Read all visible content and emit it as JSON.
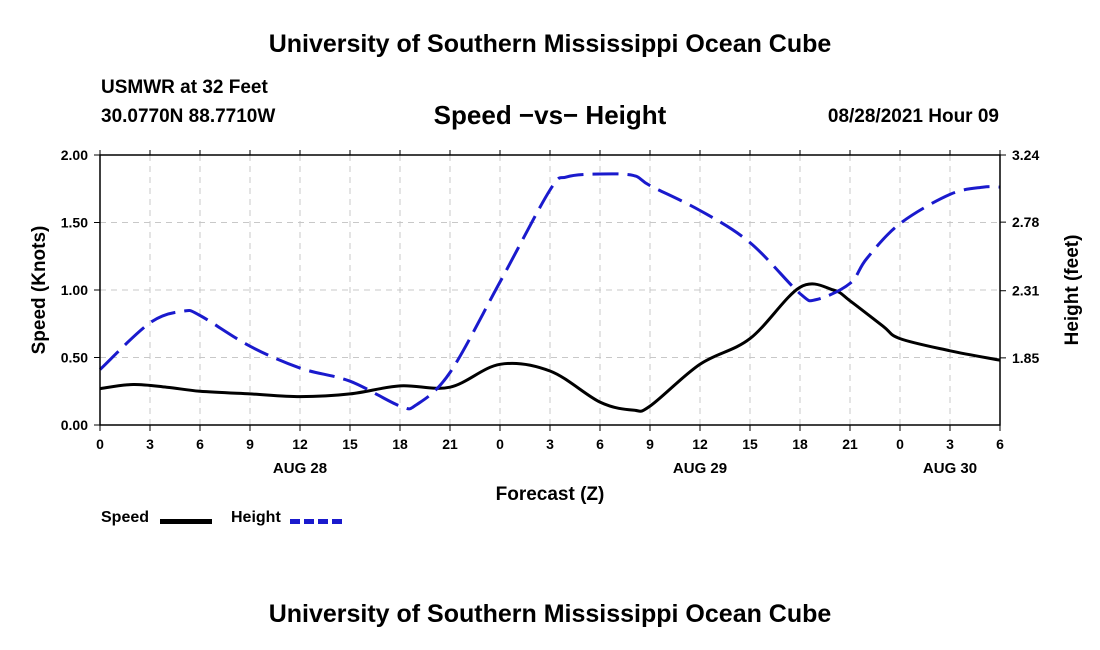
{
  "header": {
    "title": "University of Southern Mississippi Ocean Cube",
    "station": "USMWR at 32 Feet",
    "coords": "30.0770N  88.7710W",
    "plot_title": "Speed −vs− Height",
    "datetime": "08/28/2021 Hour 09"
  },
  "footer": {
    "title": "University of Southern Mississippi Ocean Cube"
  },
  "legend": {
    "speed_label": "Speed",
    "height_label": "Height"
  },
  "colors": {
    "speed": "#000000",
    "height": "#1a1acd",
    "grid": "#c8c8c8"
  },
  "chart_data": {
    "type": "line",
    "title": "Speed -vs- Height",
    "xlabel": "Forecast (Z)",
    "ylabel": "Speed (Knots)",
    "y2label": "Height (feet)",
    "xlim": [
      0,
      54
    ],
    "ylim": [
      0,
      2.0
    ],
    "y2lim": [
      1.39,
      3.24
    ],
    "x_ticks": [
      0,
      3,
      6,
      9,
      12,
      15,
      18,
      21,
      24,
      27,
      30,
      33,
      36,
      39,
      42,
      45,
      48,
      51,
      54
    ],
    "x_tick_labels": [
      "0",
      "3",
      "6",
      "9",
      "12",
      "15",
      "18",
      "21",
      "0",
      "3",
      "6",
      "9",
      "12",
      "15",
      "18",
      "21",
      "0",
      "3",
      "6"
    ],
    "y_ticks": [
      0,
      0.5,
      1.0,
      1.5,
      2.0
    ],
    "y_tick_labels": [
      "0.00",
      "0.50",
      "1.00",
      "1.50",
      "2.00"
    ],
    "y2_ticks": [
      1.85,
      2.31,
      2.78,
      3.24
    ],
    "y2_tick_labels": [
      "1.85",
      "2.31",
      "2.78",
      "3.24"
    ],
    "date_labels": [
      {
        "x": 12,
        "label": "AUG 28"
      },
      {
        "x": 36,
        "label": "AUG 29"
      },
      {
        "x": 51,
        "label": "AUG 30"
      }
    ],
    "grid": true,
    "series": [
      {
        "name": "Speed",
        "axis": "left",
        "style": "solid",
        "x": [
          0,
          2,
          4,
          6,
          9,
          12,
          15,
          18,
          21,
          24,
          27,
          30,
          32,
          33,
          36,
          39,
          42,
          44,
          45,
          47,
          48,
          51,
          54
        ],
        "values": [
          0.27,
          0.3,
          0.28,
          0.25,
          0.23,
          0.21,
          0.23,
          0.29,
          0.28,
          0.45,
          0.4,
          0.17,
          0.11,
          0.14,
          0.45,
          0.64,
          1.02,
          1.0,
          0.92,
          0.73,
          0.64,
          0.55,
          0.48
        ]
      },
      {
        "name": "Height",
        "axis": "right",
        "style": "dashed",
        "x": [
          0,
          3,
          5,
          6,
          9,
          12,
          15,
          18,
          19,
          21,
          24,
          27,
          28,
          30,
          32,
          33,
          36,
          39,
          42,
          43,
          45,
          46,
          48,
          51,
          53,
          54
        ],
        "values": [
          1.77,
          2.09,
          2.17,
          2.14,
          1.93,
          1.78,
          1.69,
          1.52,
          1.53,
          1.75,
          2.37,
          3.0,
          3.09,
          3.11,
          3.1,
          3.03,
          2.86,
          2.64,
          2.29,
          2.25,
          2.36,
          2.53,
          2.77,
          2.97,
          3.02,
          3.02
        ]
      }
    ]
  }
}
